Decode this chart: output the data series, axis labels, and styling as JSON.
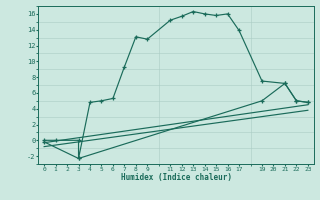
{
  "xlabel": "Humidex (Indice chaleur)",
  "bg_color": "#cce8e0",
  "grid_color": "#aaccC4",
  "line_color": "#1a6b5a",
  "xlim": [
    -0.5,
    23.5
  ],
  "ylim": [
    -3.0,
    17.0
  ],
  "xtick_positions": [
    0,
    1,
    2,
    3,
    4,
    5,
    6,
    7,
    8,
    9,
    11,
    12,
    13,
    14,
    15,
    16,
    17,
    19,
    20,
    21,
    22,
    23
  ],
  "xtick_labels": [
    "0",
    "1",
    "2",
    "3",
    "4",
    "5",
    "6",
    "7",
    "8",
    "9",
    "11",
    "12",
    "13",
    "14",
    "15",
    "16",
    "17",
    "19",
    "20",
    "21",
    "22",
    "23"
  ],
  "ytick_positions": [
    -2,
    0,
    2,
    4,
    6,
    8,
    10,
    12,
    14,
    16
  ],
  "ytick_labels": [
    "-2",
    "0",
    "2",
    "4",
    "6",
    "8",
    "10",
    "12",
    "14",
    "16"
  ],
  "curve1_x": [
    0,
    1,
    3,
    3,
    4,
    5,
    6,
    7,
    8,
    9,
    11,
    12,
    13,
    14,
    15,
    16,
    17,
    19,
    21,
    22,
    23
  ],
  "curve1_y": [
    0.0,
    0.0,
    0.0,
    -2.3,
    4.8,
    5.0,
    5.3,
    9.3,
    13.1,
    12.8,
    15.2,
    15.7,
    16.3,
    16.0,
    15.8,
    16.0,
    13.9,
    7.5,
    7.2,
    5.0,
    4.8
  ],
  "curve2_x": [
    0,
    3,
    19,
    21,
    22,
    23
  ],
  "curve2_y": [
    -0.2,
    -2.3,
    5.0,
    7.2,
    5.0,
    4.8
  ],
  "curve3_x": [
    0,
    23
  ],
  "curve3_y": [
    -0.3,
    4.5
  ],
  "curve4_x": [
    0,
    23
  ],
  "curve4_y": [
    -0.8,
    3.8
  ],
  "grid_xticks_all": [
    0,
    1,
    2,
    3,
    4,
    5,
    6,
    7,
    8,
    9,
    10,
    11,
    12,
    13,
    14,
    15,
    16,
    17,
    18,
    19,
    20,
    21,
    22,
    23
  ],
  "grid_yticks_all": [
    -3,
    -2,
    -1,
    0,
    1,
    2,
    3,
    4,
    5,
    6,
    7,
    8,
    9,
    10,
    11,
    12,
    13,
    14,
    15,
    16,
    17
  ]
}
